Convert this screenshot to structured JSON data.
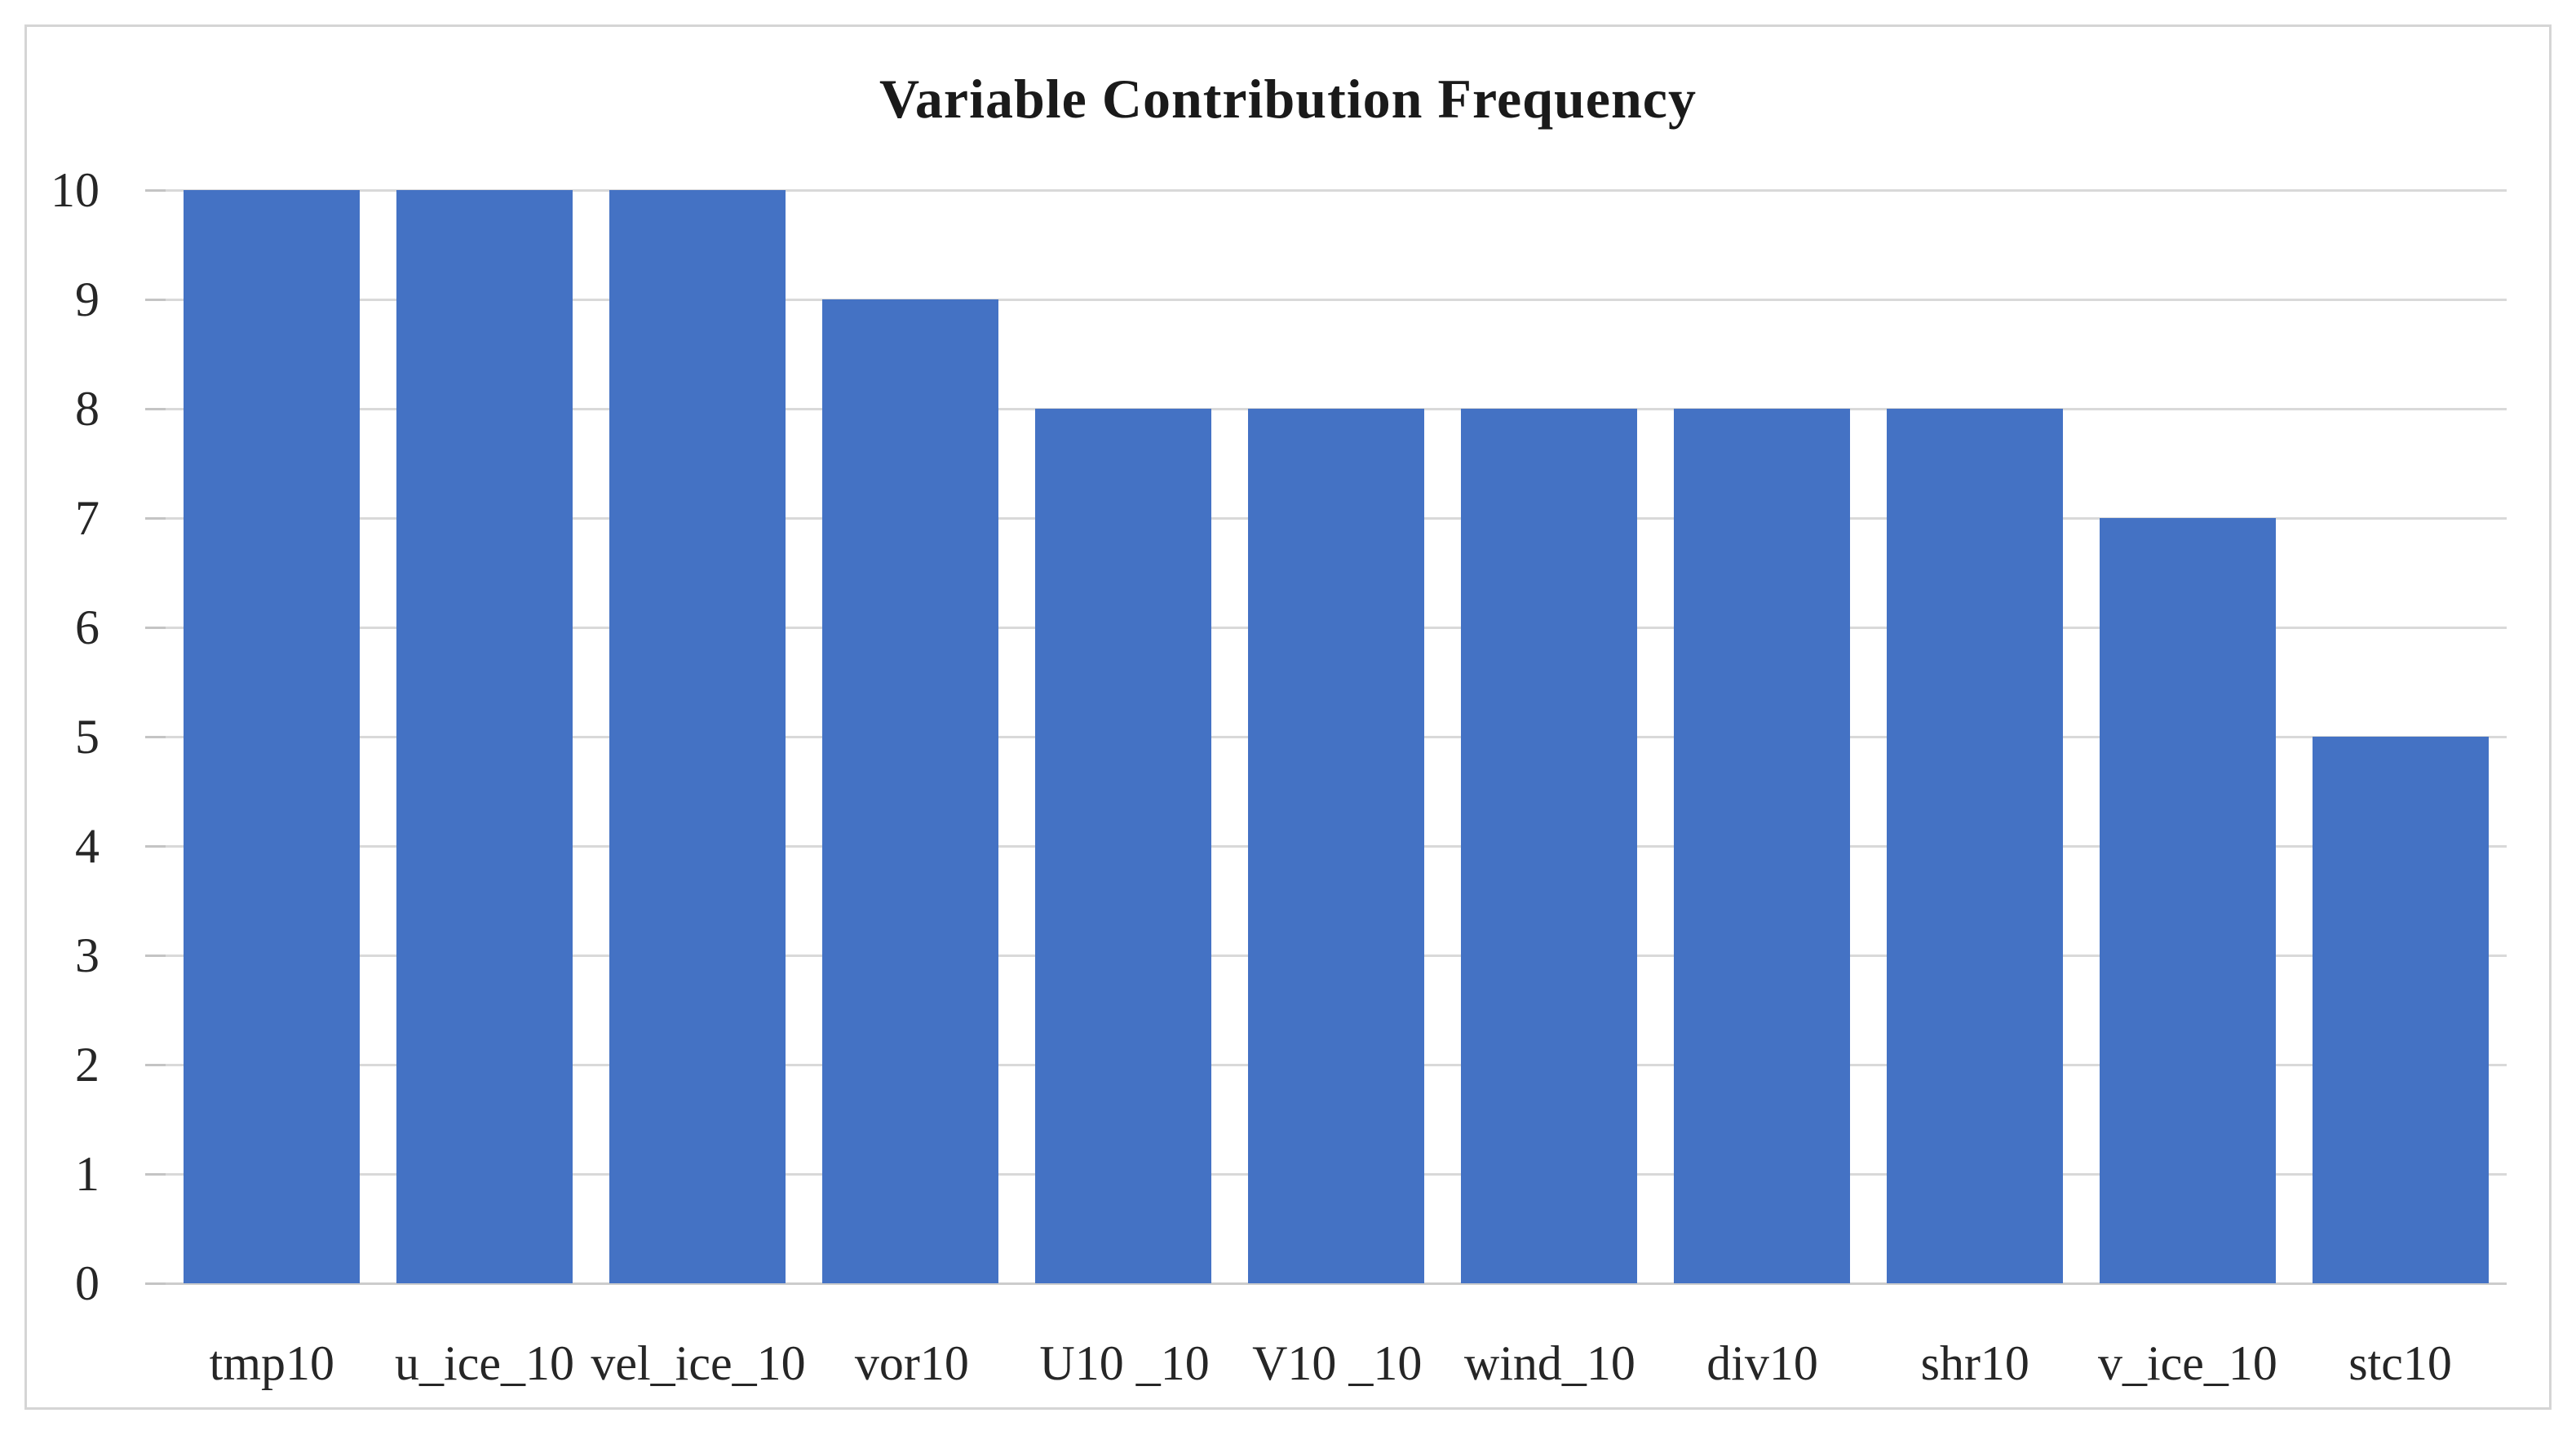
{
  "chart_data": {
    "type": "bar",
    "title": "Variable Contribution Frequency",
    "categories": [
      "tmp10",
      "u_ice_10",
      "vel_ice_10",
      "vor10",
      "U10 _10",
      "V10 _10",
      "wind_10",
      "div10",
      "shr10",
      "v_ice_10",
      "stc10"
    ],
    "values": [
      10,
      10,
      10,
      9,
      8,
      8,
      8,
      8,
      8,
      7,
      5
    ],
    "xlabel": "",
    "ylabel": "",
    "ylim": [
      0,
      10
    ],
    "yticks": [
      0,
      1,
      2,
      3,
      4,
      5,
      6,
      7,
      8,
      9,
      10
    ],
    "grid": "horizontal",
    "legend": "none",
    "colors": {
      "bar": "#4472C4",
      "gridline": "#D9D9D9",
      "baseline": "#CCCCCC",
      "tick": "#C4C4C4",
      "axis_text": "#262626",
      "title_text": "#1A1A1A",
      "frame_border": "#D5D5D5",
      "background": "#FFFFFF"
    }
  }
}
